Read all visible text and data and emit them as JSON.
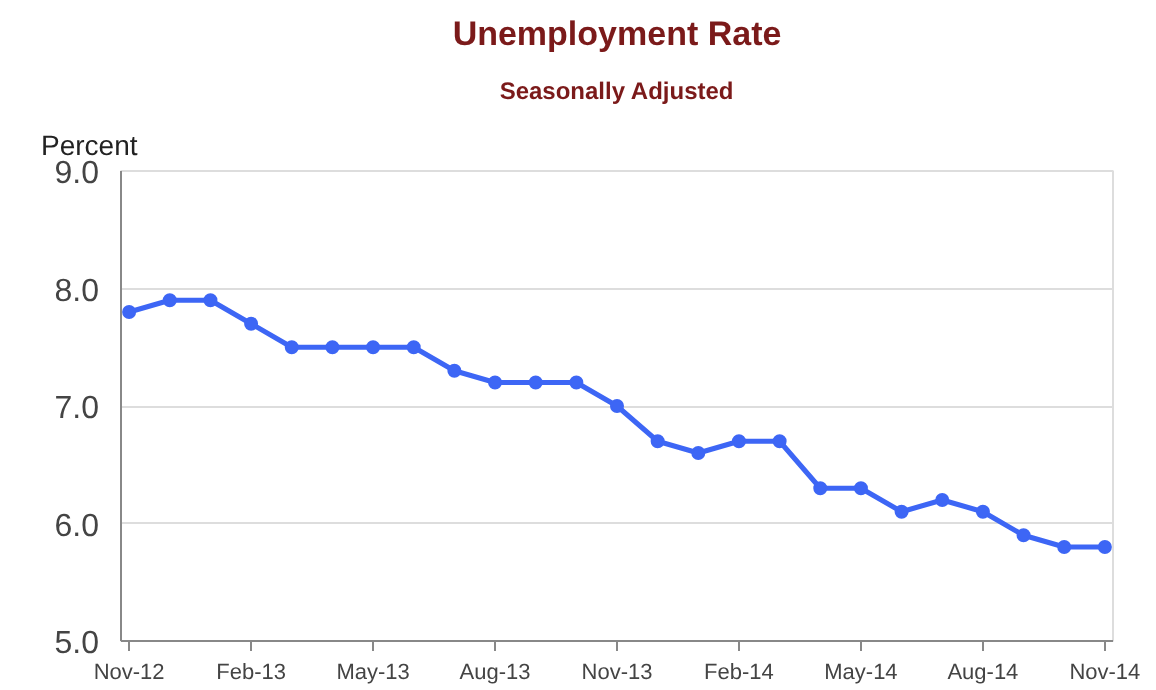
{
  "chart_data": {
    "type": "line",
    "title": "Unemployment Rate",
    "subtitle": "Seasonally Adjusted",
    "ylabel": "Percent",
    "categories": [
      "Nov-12",
      null,
      null,
      "Feb-13",
      null,
      null,
      "May-13",
      null,
      null,
      "Aug-13",
      null,
      null,
      "Nov-13",
      null,
      null,
      "Feb-14",
      null,
      null,
      "May-14",
      null,
      null,
      "Aug-14",
      null,
      null,
      "Nov-14"
    ],
    "series": [
      {
        "color": "#3d66f5",
        "values": [
          7.8,
          7.9,
          7.9,
          7.7,
          7.5,
          7.5,
          7.5,
          7.5,
          7.3,
          7.2,
          7.2,
          7.2,
          7.0,
          6.7,
          6.6,
          6.7,
          6.7,
          6.3,
          6.3,
          6.1,
          6.2,
          6.1,
          5.9,
          5.8,
          5.8
        ]
      }
    ],
    "ylim": [
      5,
      9
    ],
    "yticks": [
      {
        "value": 5,
        "label": "5.0"
      },
      {
        "value": 6,
        "label": "6.0"
      },
      {
        "value": 7,
        "label": "7.0"
      },
      {
        "value": 8,
        "label": "8.0"
      },
      {
        "value": 9,
        "label": "9.0"
      }
    ],
    "grid": "y",
    "marker": "circle",
    "line_style": "solid"
  }
}
